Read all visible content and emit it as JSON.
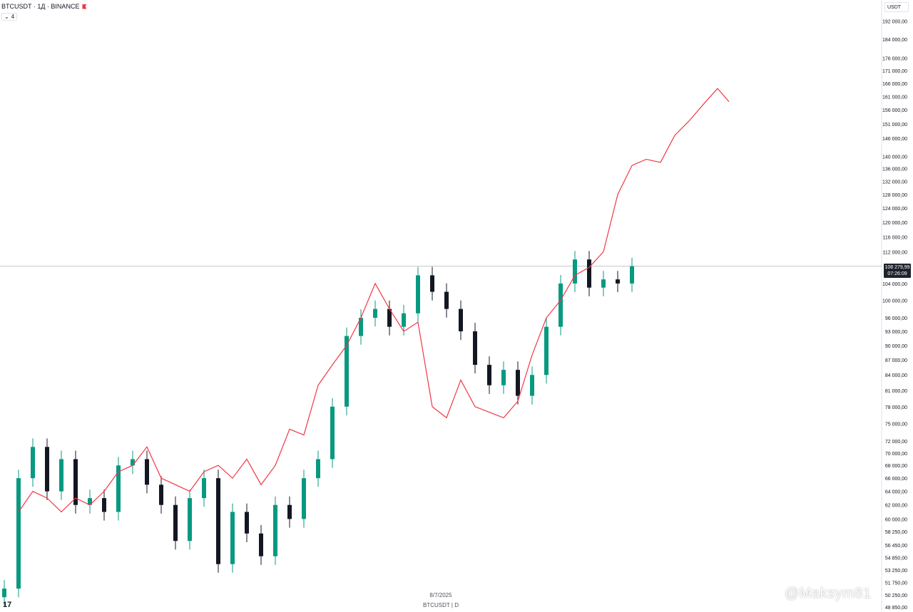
{
  "header": {
    "symbol": "BTCUSDT · 1Д · BINANCE",
    "collapse_count": "4"
  },
  "currency_selector": "USDT",
  "last_price": {
    "value": "108 279,99",
    "countdown": "07:26:09"
  },
  "footer": {
    "date": "8/7/2025",
    "symbol_line": "BTCUSDT | D"
  },
  "watermark": "@Maksym81",
  "colors": {
    "up": "#089981",
    "down": "#131722",
    "overlay": "#f23645",
    "grid": "#e0e3eb",
    "price_line": "#b2b5be"
  },
  "chart_data": {
    "type": "line",
    "log_scale": true,
    "ylim": [
      48850,
      197000
    ],
    "axis_ticks": [
      "192 000,00",
      "184 000,00",
      "176 000,00",
      "171 000,00",
      "166 000,00",
      "161 000,00",
      "156 000,00",
      "151 000,00",
      "146 000,00",
      "140 000,00",
      "136 000,00",
      "132 000,00",
      "128 000,00",
      "124 000,00",
      "120 000,00",
      "116 000,00",
      "112 000,00",
      "104 000,00",
      "100 000,00",
      "96 000,00",
      "93 000,00",
      "90 000,00",
      "87 000,00",
      "84 000,00",
      "81 000,00",
      "78 000,00",
      "75 000,00",
      "72 000,00",
      "70 000,00",
      "68 000,00",
      "66 000,00",
      "64 000,00",
      "62 000,00",
      "60 000,00",
      "58 250,00",
      "56 450,00",
      "54 850,00",
      "53 250,00",
      "51 750,00",
      "50 250,00",
      "48 850,00"
    ],
    "series": [
      {
        "kind": "candlestick",
        "x": [
          0,
          20,
          40,
          60,
          80,
          100,
          120,
          140,
          160,
          180,
          200,
          220,
          240,
          260,
          280,
          300,
          320,
          340,
          360,
          380,
          400,
          420,
          440,
          460,
          480,
          500,
          520,
          540,
          560,
          580,
          600,
          620,
          640,
          660,
          680,
          700,
          720,
          740,
          760,
          780,
          800,
          820,
          840,
          860,
          880
        ],
        "close": [
          51000,
          66000,
          71000,
          64000,
          69000,
          62000,
          63000,
          61000,
          68000,
          69000,
          65000,
          62000,
          57000,
          63000,
          66000,
          54000,
          61000,
          58000,
          55000,
          62000,
          60000,
          66000,
          69000,
          78000,
          92000,
          96000,
          98000,
          94000,
          97000,
          106000,
          102000,
          98000,
          93000,
          86000,
          82000,
          85000,
          80000,
          84000,
          94000,
          104000,
          110000,
          103000,
          105000,
          104000,
          108280
        ]
      },
      {
        "kind": "line",
        "x": [
          20,
          40,
          60,
          80,
          100,
          120,
          140,
          160,
          180,
          200,
          220,
          240,
          260,
          280,
          300,
          320,
          340,
          360,
          380,
          400,
          420,
          440,
          460,
          480,
          500,
          520,
          540,
          560,
          580,
          600,
          620,
          640,
          660,
          680,
          700,
          720,
          740,
          760,
          780,
          800,
          820,
          840,
          860,
          880,
          900,
          920,
          940,
          960,
          980,
          1000,
          1016
        ],
        "values": [
          61000,
          64000,
          63000,
          61000,
          63000,
          62000,
          64000,
          67000,
          68000,
          71000,
          66000,
          65000,
          64000,
          67000,
          68000,
          66000,
          69000,
          65000,
          68000,
          74000,
          73000,
          82000,
          86000,
          90000,
          96000,
          104000,
          98000,
          93000,
          95000,
          78000,
          76000,
          83000,
          78000,
          77000,
          76000,
          79000,
          88000,
          96000,
          100000,
          106000,
          108000,
          112000,
          128000,
          137000,
          139000,
          138000,
          147000,
          152000,
          158000,
          164000,
          159000
        ]
      }
    ]
  }
}
